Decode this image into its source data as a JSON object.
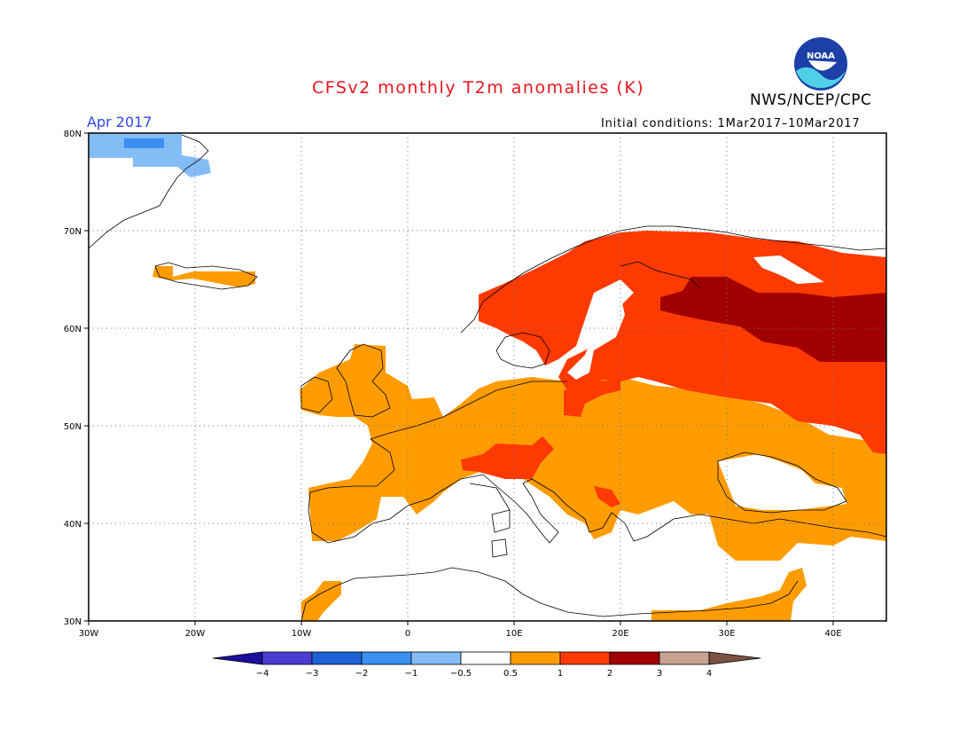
{
  "header": {
    "title": "CFSv2 monthly T2m anomalies (K)",
    "org": "NWS/NCEP/CPC",
    "month": "Apr 2017",
    "initial_conditions": "Initial conditions: 1Mar2017–10Mar2017",
    "logo_text": "NOAA"
  },
  "axes": {
    "lat_labels": [
      "80N",
      "70N",
      "60N",
      "50N",
      "40N",
      "30N"
    ],
    "lon_labels": [
      "30W",
      "20W",
      "10W",
      "0",
      "10E",
      "20E",
      "30E",
      "40E"
    ],
    "lat_range": [
      30,
      80
    ],
    "lon_range": [
      -30,
      45
    ],
    "grid": true
  },
  "legend": {
    "labels": [
      "−4",
      "−3",
      "−2",
      "−1",
      "−0.5",
      "0.5",
      "1",
      "2",
      "3",
      "4"
    ],
    "colors": [
      "#1d0f9e",
      "#4b3bd1",
      "#1e63d6",
      "#3a8ff0",
      "#84bcf6",
      "#ffffff",
      "#ff9c00",
      "#ff3a00",
      "#a00000",
      "#c9a191",
      "#7a5142"
    ]
  },
  "regions": [
    {
      "name": "Greenland east coast",
      "anomaly": "-1 to -0.5",
      "color": "#84bcf6"
    },
    {
      "name": "Western & central Europe",
      "anomaly": "0.5 to 1",
      "color": "#ff9c00"
    },
    {
      "name": "Scandinavia / Finland",
      "anomaly": "1 to 2",
      "color": "#ff3a00"
    },
    {
      "name": "Northwest Russia",
      "anomaly": "2 to 3",
      "color": "#a00000"
    }
  ]
}
